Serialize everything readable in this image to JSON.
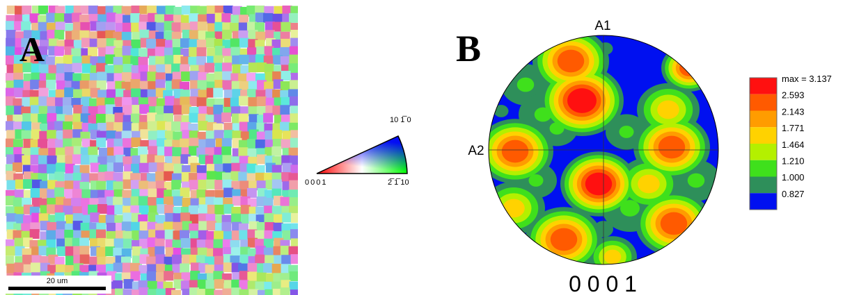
{
  "panel_a": {
    "label": "A",
    "scale_bar": "20 um"
  },
  "ipf_key": {
    "origin": "0001",
    "right": "2̅ 1̅ 10",
    "top": "10 1̅ 0"
  },
  "panel_b": {
    "label": "B",
    "axis_top": "A1",
    "axis_left": "A2",
    "title": "0 0 0 1"
  },
  "legend": {
    "items": [
      {
        "label": "max = 3.137",
        "color": "#ff1010"
      },
      {
        "label": "2.593",
        "color": "#ff5a00"
      },
      {
        "label": "2.143",
        "color": "#ff9c00"
      },
      {
        "label": "1.771",
        "color": "#ffd200"
      },
      {
        "label": "1.464",
        "color": "#b4f000"
      },
      {
        "label": "1.210",
        "color": "#3fe01c"
      },
      {
        "label": "1.000",
        "color": "#2e8f5a"
      },
      {
        "label": "0.827",
        "color": "#0010f0"
      }
    ]
  }
}
